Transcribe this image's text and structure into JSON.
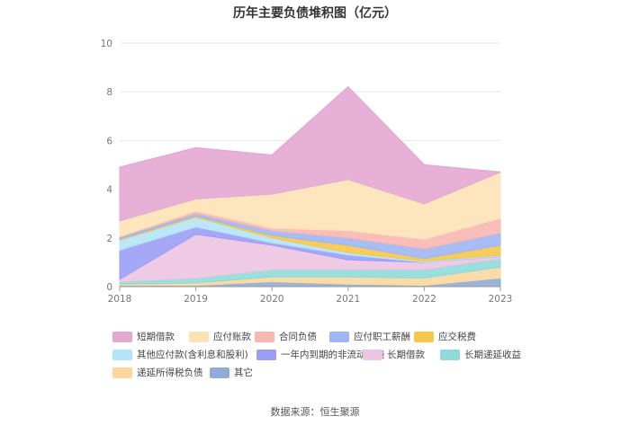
{
  "title": "历年主要负债堆积图（亿元）",
  "source": "数据来源：恒生聚源",
  "chart_data": {
    "type": "area",
    "stacked": true,
    "categories": [
      "2018",
      "2019",
      "2020",
      "2021",
      "2022",
      "2023"
    ],
    "ylim": [
      0,
      10
    ],
    "yticks": [
      "0",
      "2",
      "4",
      "6",
      "8",
      "10"
    ],
    "grid": true,
    "legend_position": "bottom",
    "series": [
      {
        "name": "其它",
        "color": "#8eacd6",
        "values": [
          0.05,
          0.05,
          0.2,
          0.1,
          0.05,
          0.35
        ]
      },
      {
        "name": "递延所得税负债",
        "color": "#fbd79e",
        "values": [
          0.05,
          0.1,
          0.2,
          0.3,
          0.3,
          0.45
        ]
      },
      {
        "name": "长期递延收益",
        "color": "#8fdbd9",
        "values": [
          0.1,
          0.2,
          0.3,
          0.3,
          0.35,
          0.35
        ]
      },
      {
        "name": "长期借款",
        "color": "#edc4e2",
        "values": [
          0.1,
          1.8,
          1.0,
          0.4,
          0.3,
          0.1
        ]
      },
      {
        "name": "一年内到期的非流动负债",
        "color": "#9b9ef5",
        "values": [
          1.2,
          0.3,
          0.1,
          0.2,
          0.0,
          0.0
        ]
      },
      {
        "name": "其他应付款(含利息和股利)",
        "color": "#b4e4f8",
        "values": [
          0.4,
          0.4,
          0.2,
          0.1,
          0.05,
          0.05
        ]
      },
      {
        "name": "应交税费",
        "color": "#f7c64a",
        "values": [
          0.05,
          0.05,
          0.1,
          0.3,
          0.1,
          0.4
        ]
      },
      {
        "name": "应付职工薪酬",
        "color": "#9fb6f2",
        "values": [
          0.1,
          0.1,
          0.2,
          0.3,
          0.4,
          0.5
        ]
      },
      {
        "name": "合同负债",
        "color": "#f8b7b2",
        "values": [
          0.0,
          0.1,
          0.1,
          0.3,
          0.4,
          0.6
        ]
      },
      {
        "name": "应付账款",
        "color": "#fde2b6",
        "values": [
          0.65,
          0.5,
          1.4,
          2.1,
          1.45,
          1.9
        ]
      },
      {
        "name": "短期借款",
        "color": "#e4a9d3",
        "values": [
          2.2,
          2.1,
          1.6,
          3.8,
          1.6,
          0.0
        ]
      }
    ]
  }
}
